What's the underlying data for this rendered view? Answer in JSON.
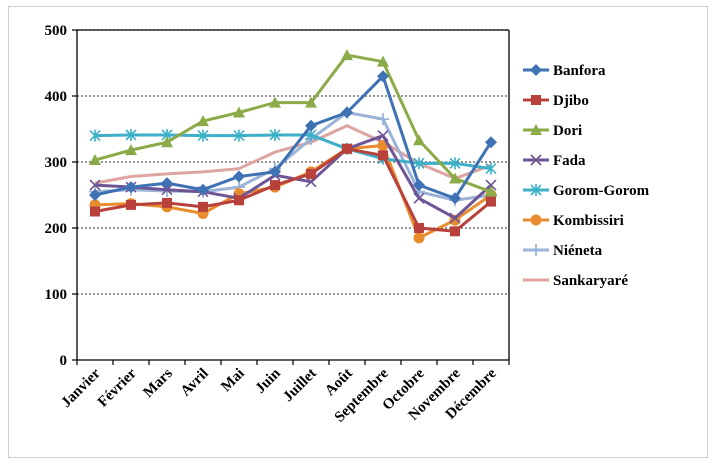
{
  "chart_data": {
    "type": "line",
    "categories": [
      "Janvier",
      "Février",
      "Mars",
      "Avril",
      "Mai",
      "Juin",
      "Juillet",
      "Août",
      "Septembre",
      "Octobre",
      "Novembre",
      "Décembre"
    ],
    "ylim": [
      0,
      500
    ],
    "yticks": [
      "0",
      "100",
      "200",
      "300",
      "400",
      "500"
    ],
    "grid": "horizontal dotted",
    "legend_position": "right",
    "series": [
      {
        "name": "Banfora",
        "color": "#3F72B4",
        "marker": "diamond",
        "values": [
          250,
          262,
          268,
          258,
          278,
          285,
          355,
          375,
          430,
          265,
          245,
          330
        ]
      },
      {
        "name": "Djibo",
        "color": "#B8413C",
        "marker": "square",
        "values": [
          225,
          235,
          238,
          232,
          242,
          265,
          282,
          320,
          310,
          200,
          195,
          240
        ]
      },
      {
        "name": "Dori",
        "color": "#8BAA48",
        "marker": "triangle",
        "values": [
          303,
          318,
          330,
          362,
          375,
          390,
          390,
          462,
          452,
          333,
          275,
          255
        ]
      },
      {
        "name": "Fada",
        "color": "#6E5596",
        "marker": "x",
        "values": [
          265,
          262,
          258,
          255,
          245,
          280,
          270,
          320,
          340,
          245,
          215,
          265
        ]
      },
      {
        "name": "Gorom-Gorom",
        "color": "#3DAFC8",
        "marker": "star",
        "values": [
          340,
          341,
          341,
          340,
          340,
          341,
          341,
          320,
          305,
          298,
          298,
          290
        ]
      },
      {
        "name": "Kombissiri",
        "color": "#E98C2E",
        "marker": "circle",
        "values": [
          235,
          237,
          232,
          222,
          252,
          262,
          285,
          320,
          325,
          185,
          212,
          250
        ]
      },
      {
        "name": "Niéneta",
        "color": "#9CB3D8",
        "marker": "plus",
        "values": [
          255,
          258,
          256,
          255,
          262,
          290,
          335,
          375,
          365,
          255,
          242,
          250
        ]
      },
      {
        "name": "Sankaryaré",
        "color": "#DDA4A1",
        "marker": "none",
        "values": [
          268,
          278,
          282,
          285,
          290,
          315,
          330,
          355,
          330,
          298,
          275,
          295
        ]
      }
    ]
  }
}
